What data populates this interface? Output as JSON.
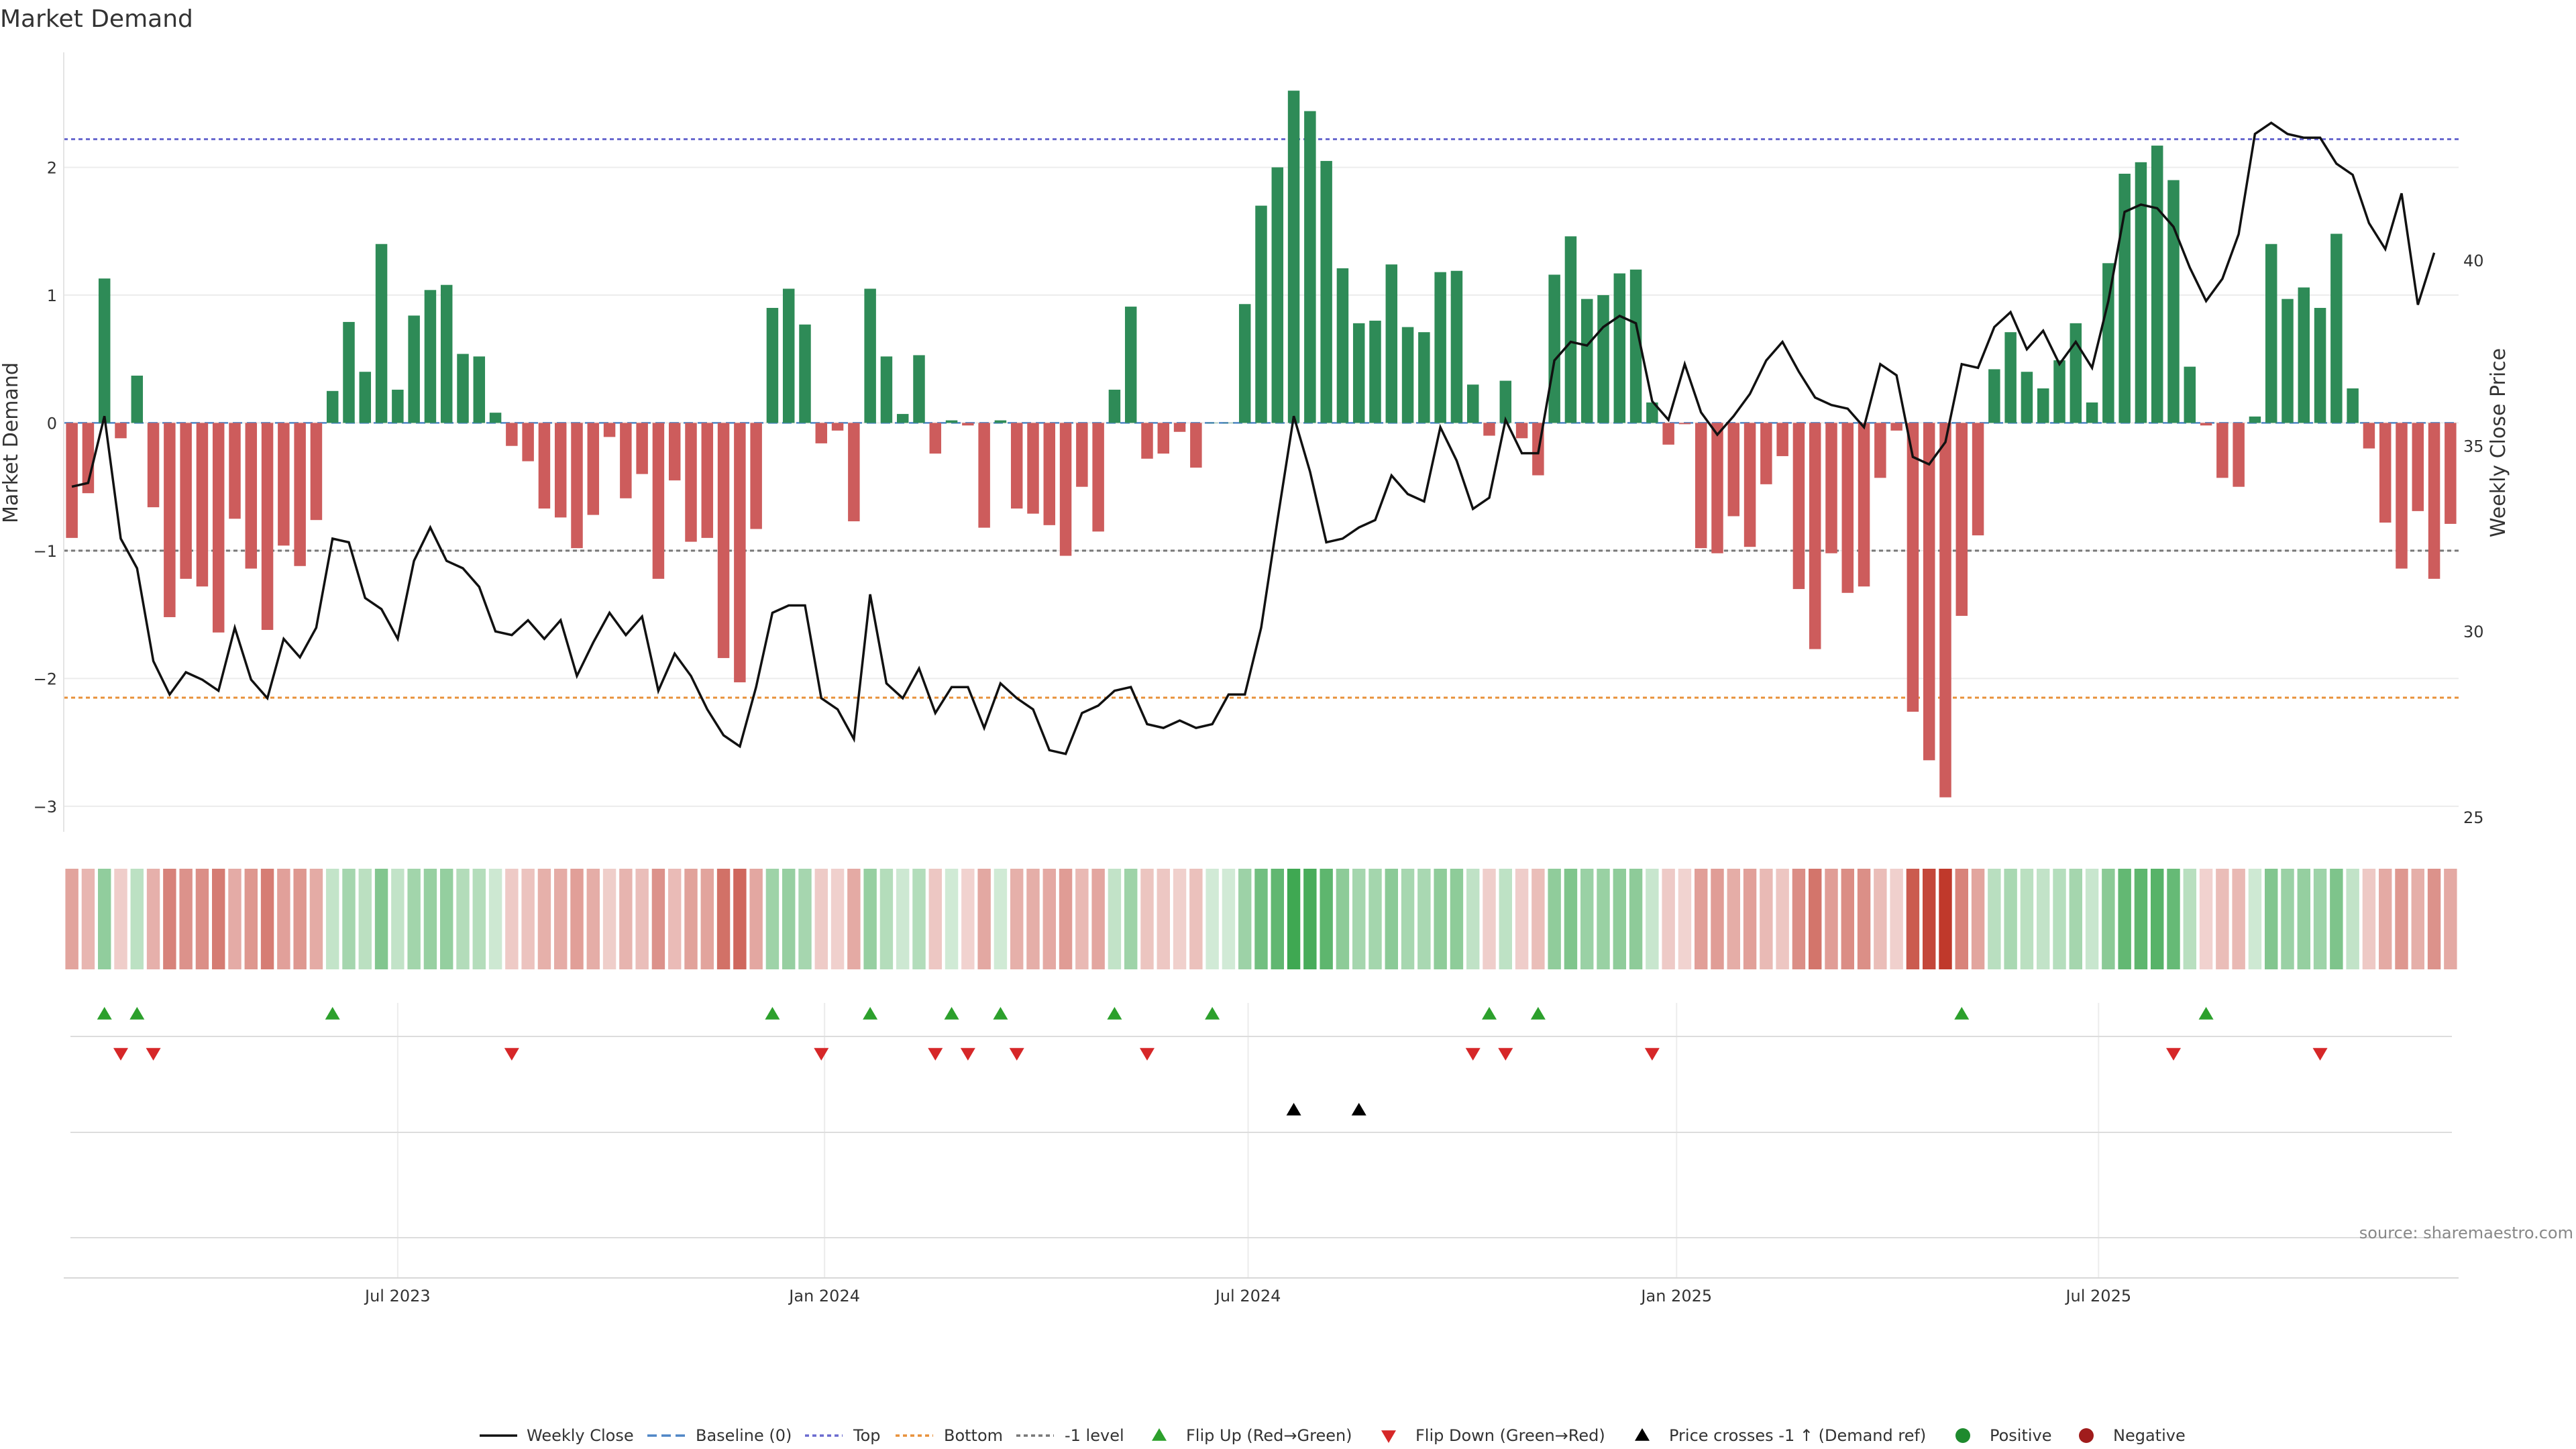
{
  "chart_data": {
    "type": "bar",
    "title": "Market Demand",
    "ylabel": "Market Demand",
    "y2label": "Weekly Close Price",
    "ylim": [
      -3.2,
      2.9
    ],
    "y2lim": [
      24.6,
      45.6
    ],
    "yticks": [
      2,
      1,
      0,
      -1,
      -2,
      -3
    ],
    "yticks_labels": [
      "2",
      "1",
      "0",
      "−1",
      "−2",
      "−3"
    ],
    "y2ticks": [
      40,
      35,
      30,
      25
    ],
    "x_range": [
      0,
      144
    ],
    "xticks": [
      {
        "pos": 20.5,
        "label": "Jul 2023"
      },
      {
        "pos": 46.7,
        "label": "Jan 2024"
      },
      {
        "pos": 72.7,
        "label": "Jul 2024"
      },
      {
        "pos": 99.0,
        "label": "Jan 2025"
      },
      {
        "pos": 124.9,
        "label": "Jul 2025"
      }
    ],
    "reference_lines": [
      {
        "name": "Top",
        "value": 2.22,
        "color": "#6a6acf"
      },
      {
        "name": "Bottom",
        "value": -2.15,
        "color": "#e8913a"
      },
      {
        "name": "-1 level",
        "value": -1,
        "color": "#777777"
      }
    ],
    "demand": [
      -0.9,
      -0.55,
      1.13,
      -0.12,
      0.37,
      -0.66,
      -1.52,
      -1.22,
      -1.28,
      -1.64,
      -0.75,
      -1.14,
      -1.62,
      -0.96,
      -1.12,
      -0.76,
      0.25,
      0.79,
      0.4,
      1.4,
      0.26,
      0.84,
      1.04,
      1.08,
      0.54,
      0.52,
      0.08,
      -0.18,
      -0.3,
      -0.67,
      -0.74,
      -0.98,
      -0.72,
      -0.11,
      -0.59,
      -0.4,
      -1.22,
      -0.45,
      -0.93,
      -0.9,
      -1.84,
      -2.03,
      -0.83,
      0.9,
      1.05,
      0.77,
      -0.16,
      -0.06,
      -0.77,
      1.05,
      0.52,
      0.07,
      0.53,
      -0.24,
      0.02,
      -0.02,
      -0.82,
      0.02,
      -0.67,
      -0.71,
      -0.8,
      -1.04,
      -0.5,
      -0.85,
      0.26,
      0.91,
      -0.28,
      -0.24,
      -0.07,
      -0.35,
      0.0,
      0.0,
      0.93,
      1.7,
      2.0,
      2.6,
      2.44,
      2.05,
      1.21,
      0.78,
      0.8,
      1.24,
      0.75,
      0.71,
      1.18,
      1.19,
      0.3,
      -0.1,
      0.33,
      -0.12,
      -0.41,
      1.16,
      1.46,
      0.97,
      1.0,
      1.17,
      1.2,
      0.16,
      -0.17,
      -0.01,
      -0.98,
      -1.02,
      -0.73,
      -0.97,
      -0.48,
      -0.26,
      -1.3,
      -1.77,
      -1.02,
      -1.33,
      -1.28,
      -0.43,
      -0.06,
      -2.26,
      -2.64,
      -2.93,
      -1.51,
      -0.88,
      0.42,
      0.71,
      0.4,
      0.27,
      0.49,
      0.78,
      0.16,
      1.25,
      1.95,
      2.04,
      2.17,
      1.9,
      0.44,
      -0.02,
      -0.43,
      -0.5,
      0.05,
      1.4,
      0.97,
      1.06,
      0.9,
      1.48,
      0.27,
      -0.2,
      -0.78,
      -1.14,
      -0.69,
      -1.22,
      -0.79
    ],
    "series": [
      {
        "name": "Weekly Close",
        "values": [
          33.9,
          34.0,
          35.8,
          32.5,
          31.7,
          29.2,
          28.3,
          28.9,
          28.7,
          28.4,
          30.1,
          28.7,
          28.2,
          29.8,
          29.3,
          30.1,
          32.5,
          32.4,
          30.9,
          30.6,
          29.8,
          31.9,
          32.8,
          31.9,
          31.7,
          31.2,
          30.0,
          29.9,
          30.3,
          29.8,
          30.3,
          28.8,
          29.7,
          30.5,
          29.9,
          30.4,
          28.4,
          29.4,
          28.8,
          27.9,
          27.2,
          26.9,
          28.5,
          30.5,
          30.7,
          30.7,
          28.2,
          27.9,
          27.1,
          31.0,
          28.6,
          28.2,
          29.0,
          27.8,
          28.5,
          28.5,
          27.4,
          28.6,
          28.2,
          27.9,
          26.8,
          26.7,
          27.8,
          28.0,
          28.4,
          28.5,
          27.5,
          27.4,
          27.6,
          27.4,
          27.5,
          28.3,
          28.3,
          30.1,
          33.0,
          35.8,
          34.3,
          32.4,
          32.5,
          32.8,
          33.0,
          34.2,
          33.7,
          33.5,
          35.5,
          34.6,
          33.3,
          33.6,
          35.7,
          34.8,
          34.8,
          37.3,
          37.8,
          37.7,
          38.2,
          38.5,
          38.3,
          36.2,
          35.7,
          37.2,
          35.9,
          35.3,
          35.8,
          36.4,
          37.3,
          37.8,
          37.0,
          36.3,
          36.1,
          36.0,
          35.5,
          37.2,
          36.9,
          34.7,
          34.5,
          35.1,
          37.2,
          37.1,
          38.2,
          38.6,
          37.6,
          38.1,
          37.2,
          37.8,
          37.1,
          38.9,
          41.3,
          41.5,
          41.4,
          40.9,
          39.8,
          38.9,
          39.5,
          40.7,
          43.4,
          43.7,
          43.4,
          43.3,
          43.3,
          42.6,
          42.3,
          41.0,
          40.3,
          41.8,
          38.8,
          40.2
        ]
      }
    ],
    "flip_up_indices": [
      2,
      4,
      16,
      43,
      49,
      54,
      57,
      64,
      70,
      87,
      90,
      116,
      131
    ],
    "flip_down_indices": [
      3,
      5,
      27,
      46,
      53,
      55,
      58,
      66,
      86,
      88,
      97,
      129,
      138
    ],
    "price_cross_indices": [
      75,
      79
    ],
    "legend": [
      "Weekly Close",
      "Baseline (0)",
      "Top",
      "Bottom",
      "-1 level",
      "Flip Up (Red→Green)",
      "Flip Down (Green→Red)",
      "Price crosses -1 ↑ (Demand ref)",
      "Positive",
      "Negative"
    ],
    "source": "source: sharemaestro.com",
    "colors": {
      "positive": "#2e8b57",
      "negative": "#cd5c5c",
      "price_line": "#111111",
      "baseline": "#4f86c6",
      "flip_up": "#2ca02c",
      "flip_down": "#d62728",
      "cross": "#000000",
      "legend_positive": "#1e8a2e",
      "legend_negative": "#a01c1c"
    }
  }
}
